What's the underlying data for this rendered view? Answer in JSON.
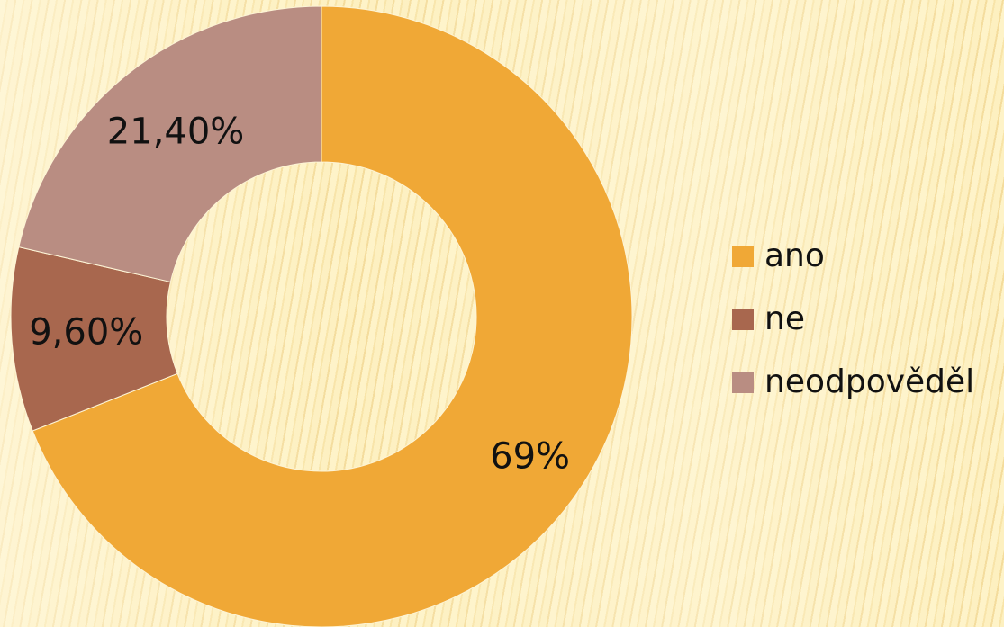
{
  "chart_data": {
    "type": "pie",
    "variant": "doughnut",
    "categories": [
      "ano",
      "ne",
      "neodpověděl"
    ],
    "values": [
      69,
      9.6,
      21.4
    ],
    "labels": [
      "69%",
      "9,60%",
      "21,40%"
    ],
    "colors": [
      "#f0a836",
      "#a8674e",
      "#b98d82"
    ],
    "legend_position": "right",
    "title": ""
  }
}
